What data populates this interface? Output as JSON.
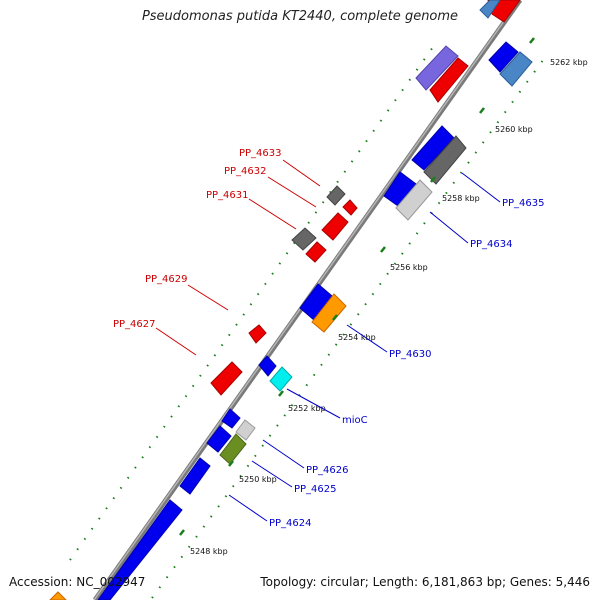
{
  "title": "Pseudomonas putida KT2440, complete genome",
  "accession": "Accession: NC_002947",
  "summary": "Topology: circular; Length: 6,181,863 bp; Genes: 5,446",
  "colors": {
    "backbone": "#808080",
    "forward_label": "#0000cc",
    "reverse_label": "#cc0000",
    "tick": "#1a7f1a"
  },
  "scale_labels": [
    "5248 kbp",
    "5250 kbp",
    "5252 kbp",
    "5254 kbp",
    "5256 kbp",
    "5258 kbp",
    "5260 kbp",
    "5262 kbp"
  ],
  "gene_labels_forward": [
    "PP_4624",
    "PP_4625",
    "PP_4626",
    "mioC",
    "PP_4630",
    "PP_4634",
    "PP_4635"
  ],
  "gene_labels_reverse": [
    "PP_4627",
    "PP_4629",
    "PP_4631",
    "PP_4632",
    "PP_4633"
  ]
}
